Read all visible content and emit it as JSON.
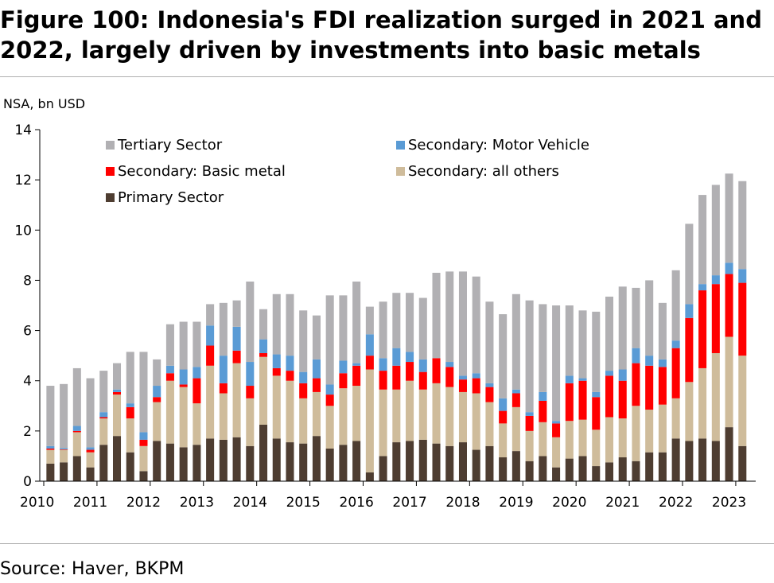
{
  "title": "Figure 100: Indonesia's FDI realization surged in 2021 and 2022, largely driven by investments into basic metals",
  "source": "Source: Haver, BKPM",
  "colors": {
    "Tertiary Sector": "#b1b0b3",
    "Secondary: Motor Vehicle": "#5a9bd5",
    "Secondary: Basic metal": "#ff0000",
    "Secondary: all others": "#cfbc9b",
    "Primary Sector": "#4e3d31"
  },
  "chart_data": {
    "type": "bar",
    "stacked": true,
    "ylabel": "NSA, bn USD",
    "ylim": [
      0,
      14
    ],
    "yticks": [
      0,
      2,
      4,
      6,
      8,
      10,
      12,
      14
    ],
    "xticks": [
      "2010",
      "2011",
      "2012",
      "2013",
      "2014",
      "2015",
      "2016",
      "2017",
      "2018",
      "2019",
      "2020",
      "2021",
      "2022",
      "2023"
    ],
    "x_start_year": 2010,
    "periods_per_year": 4,
    "legend": {
      "placement": "top-left",
      "entries": [
        "Tertiary Sector",
        "Secondary: Motor Vehicle",
        "Secondary: Basic metal",
        "Secondary: all others",
        "Primary Sector"
      ]
    },
    "grid": false,
    "series": [
      {
        "name": "Primary Sector",
        "values": [
          0.7,
          0.75,
          1.0,
          0.55,
          1.45,
          1.8,
          1.15,
          0.4,
          1.6,
          1.5,
          1.35,
          1.45,
          1.7,
          1.65,
          1.75,
          1.4,
          2.25,
          1.7,
          1.55,
          1.5,
          1.8,
          1.3,
          1.45,
          1.6,
          0.35,
          1.0,
          1.55,
          1.6,
          1.65,
          1.5,
          1.4,
          1.55,
          1.25,
          1.4,
          0.95,
          1.2,
          0.8,
          1.0,
          0.55,
          0.9,
          1.0,
          0.6,
          0.75,
          0.95,
          0.8,
          1.15,
          1.15,
          1.7,
          1.6,
          1.7,
          1.6,
          2.15,
          1.4
        ]
      },
      {
        "name": "Secondary: all others",
        "values": [
          0.55,
          0.5,
          0.95,
          0.6,
          1.05,
          1.65,
          1.35,
          1.0,
          1.55,
          2.5,
          2.4,
          1.65,
          2.9,
          1.85,
          2.95,
          1.9,
          2.7,
          2.5,
          2.45,
          1.8,
          1.75,
          1.7,
          2.25,
          2.2,
          4.1,
          2.65,
          2.1,
          2.4,
          2.0,
          2.4,
          2.35,
          2.0,
          2.25,
          1.75,
          1.35,
          1.75,
          1.2,
          1.35,
          1.2,
          1.5,
          1.45,
          1.45,
          1.8,
          1.55,
          2.2,
          1.7,
          1.9,
          1.6,
          2.35,
          2.8,
          3.5,
          3.6,
          3.6
        ]
      },
      {
        "name": "Secondary: Basic metal",
        "values": [
          0.05,
          0.02,
          0.05,
          0.1,
          0.05,
          0.1,
          0.45,
          0.25,
          0.2,
          0.3,
          0.1,
          1.0,
          0.8,
          0.4,
          0.5,
          0.5,
          0.15,
          0.3,
          0.4,
          0.6,
          0.55,
          0.45,
          0.6,
          0.8,
          0.55,
          0.75,
          0.95,
          0.75,
          0.7,
          1.0,
          0.8,
          0.5,
          0.6,
          0.6,
          0.5,
          0.55,
          0.6,
          0.85,
          0.55,
          1.5,
          1.55,
          1.3,
          1.65,
          1.5,
          1.7,
          1.75,
          1.5,
          2.0,
          2.55,
          3.1,
          2.75,
          2.5,
          2.9
        ]
      },
      {
        "name": "Secondary: Motor Vehicle",
        "values": [
          0.1,
          0.05,
          0.2,
          0.1,
          0.2,
          0.1,
          0.15,
          0.3,
          0.45,
          0.3,
          0.6,
          0.45,
          0.8,
          1.1,
          0.95,
          0.95,
          0.55,
          0.55,
          0.6,
          0.45,
          0.75,
          0.4,
          0.5,
          0.1,
          0.85,
          0.5,
          0.7,
          0.4,
          0.5,
          0.0,
          0.2,
          0.15,
          0.2,
          0.15,
          0.5,
          0.15,
          0.15,
          0.35,
          0.1,
          0.3,
          0.1,
          0.2,
          0.2,
          0.45,
          0.6,
          0.4,
          0.3,
          0.3,
          0.55,
          0.25,
          0.35,
          0.45,
          0.55
        ]
      },
      {
        "name": "Tertiary Sector",
        "values": [
          2.4,
          2.55,
          2.3,
          2.75,
          1.65,
          1.05,
          2.05,
          3.2,
          1.05,
          1.65,
          1.9,
          1.8,
          0.85,
          2.1,
          1.05,
          3.2,
          1.2,
          2.4,
          2.45,
          2.45,
          1.75,
          3.55,
          2.6,
          3.25,
          1.1,
          2.25,
          2.2,
          2.35,
          2.45,
          3.4,
          3.6,
          4.15,
          3.85,
          3.25,
          3.35,
          3.8,
          4.45,
          3.5,
          4.6,
          2.8,
          2.7,
          3.2,
          2.95,
          3.3,
          2.4,
          3.0,
          2.25,
          2.8,
          3.2,
          3.55,
          3.6,
          3.55,
          3.5
        ]
      }
    ]
  }
}
